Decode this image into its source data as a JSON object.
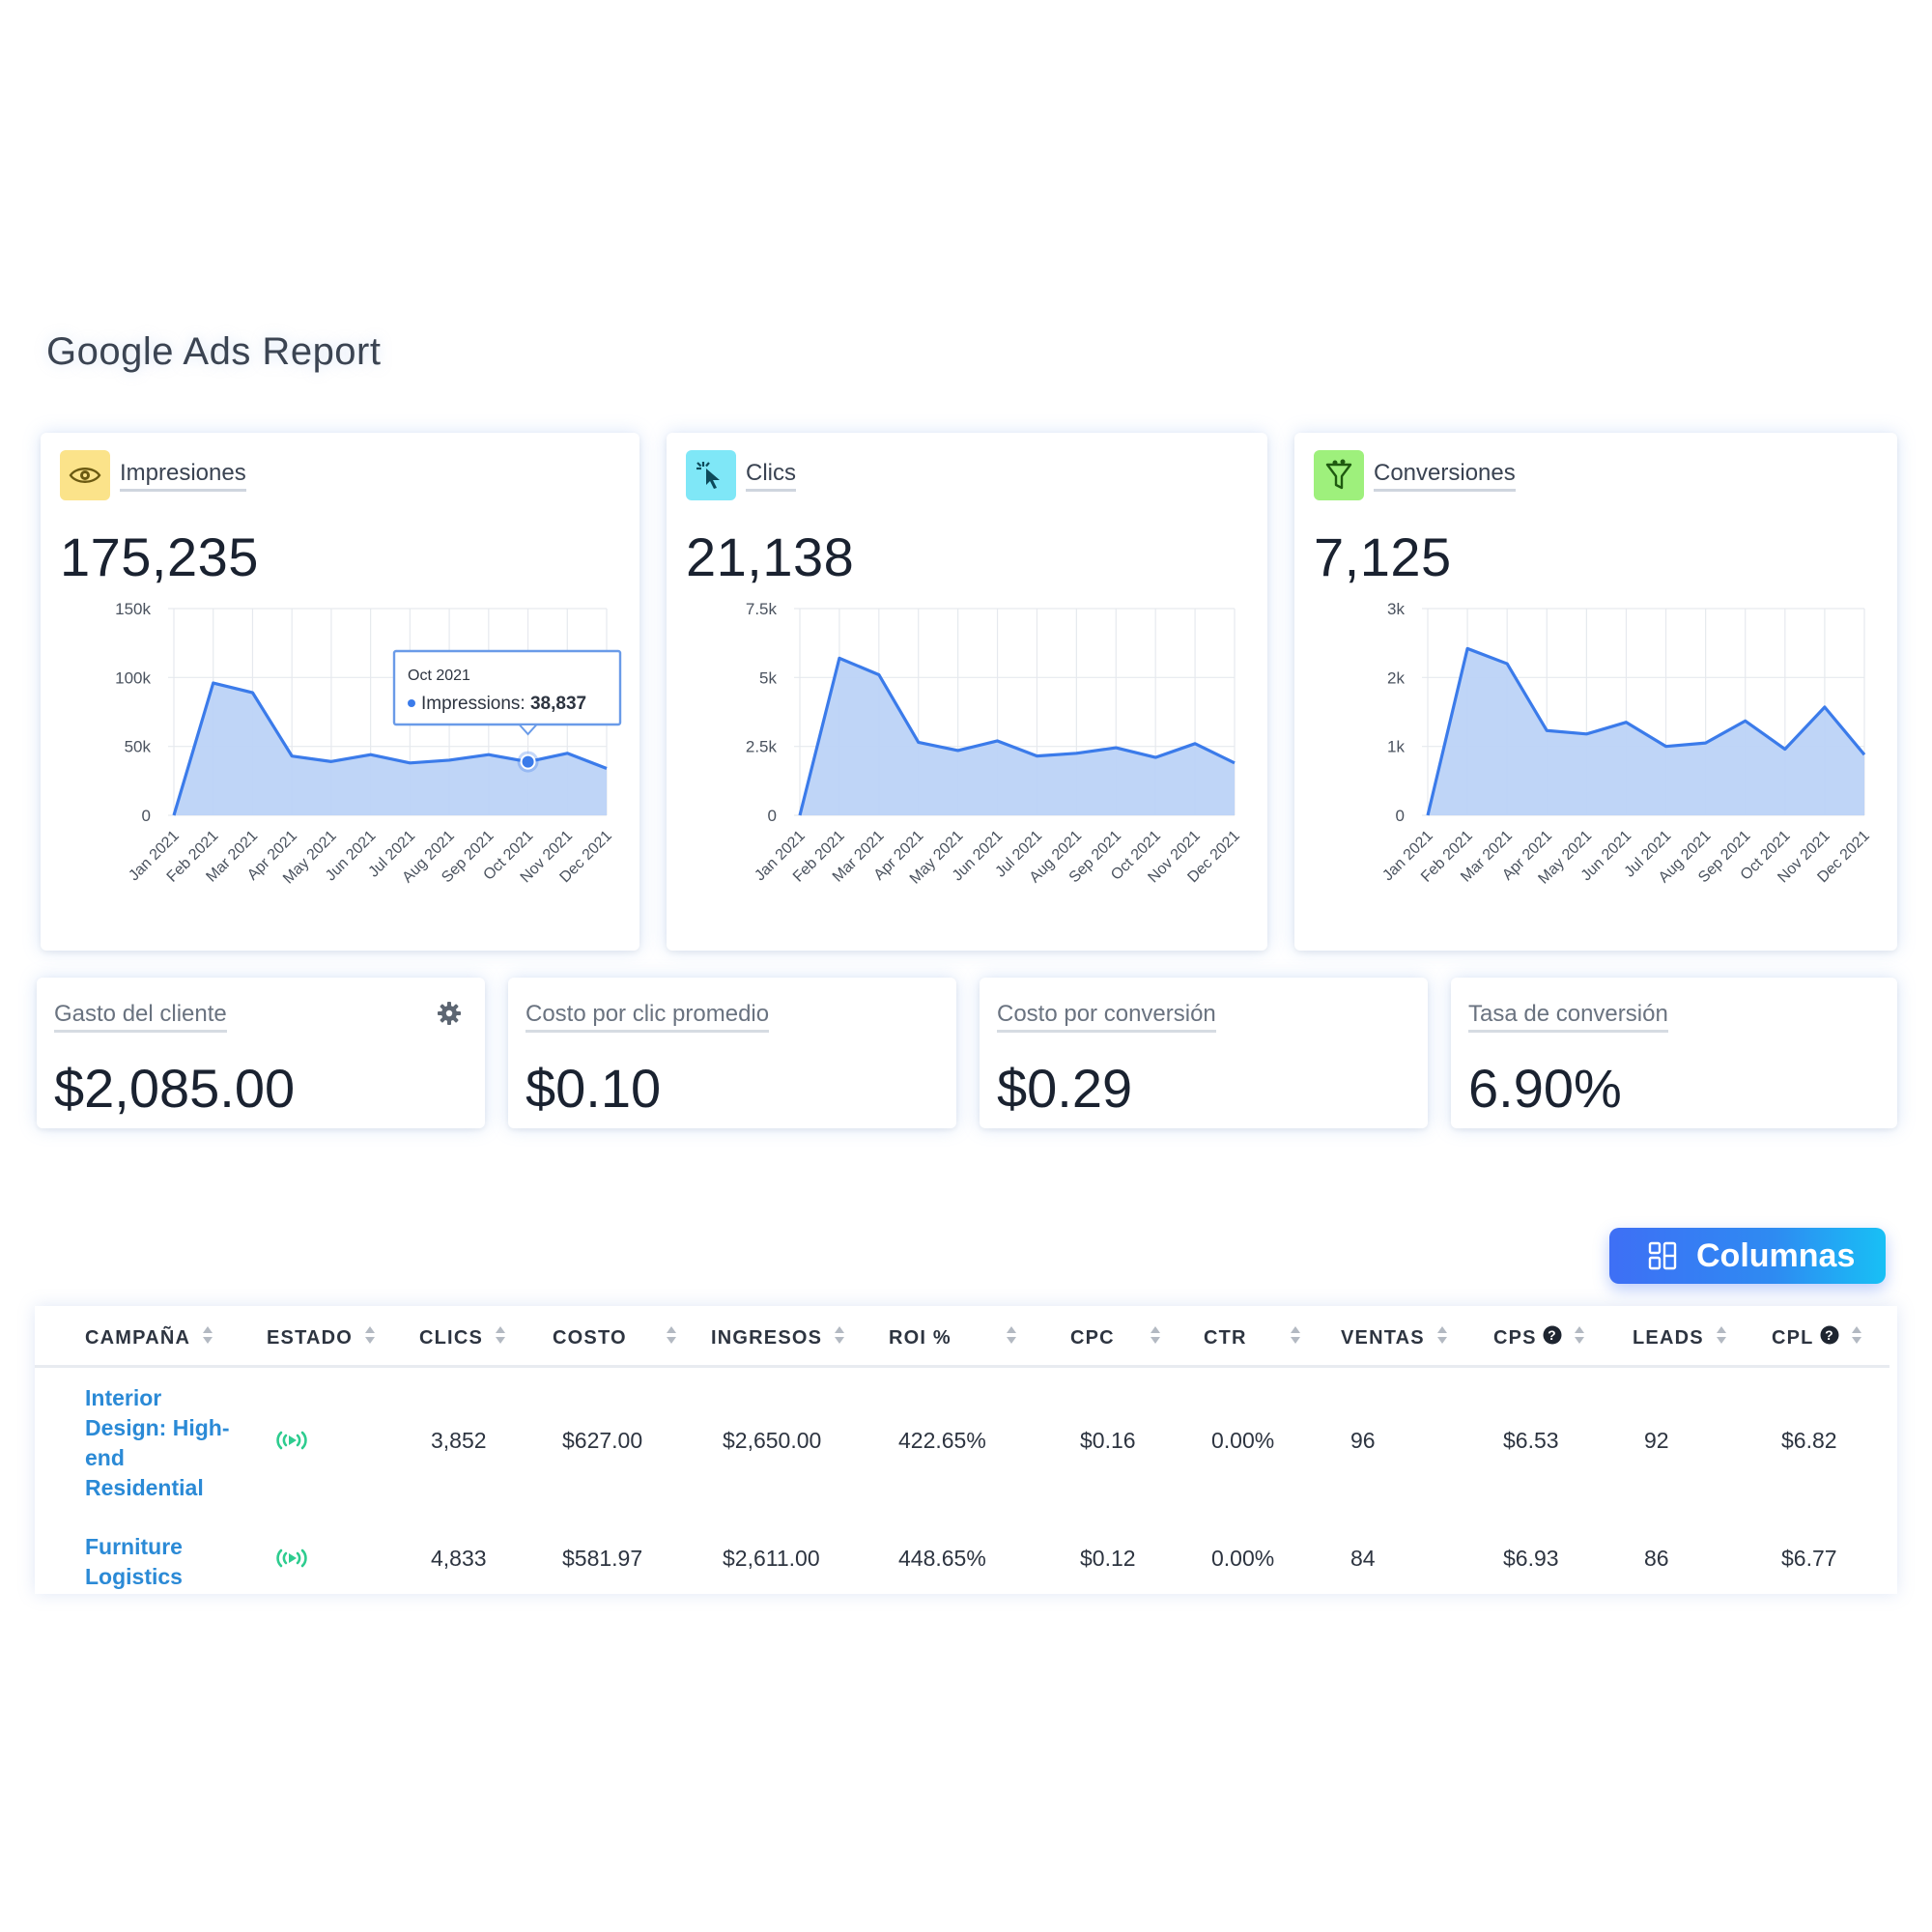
{
  "page": {
    "title": "Google Ads Report"
  },
  "charts": [
    {
      "label": "Impresiones",
      "value": "175,235",
      "icon": "eye-icon",
      "icon_bg": "#fbe38a",
      "tooltip": {
        "month": "Oct 2021",
        "series": "Impressions:",
        "value": "38,837",
        "index": 9
      },
      "y_ticks": [
        "0",
        "50k",
        "100k",
        "150k"
      ]
    },
    {
      "label": "Clics",
      "value": "21,138",
      "icon": "cursor-click-icon",
      "icon_bg": "#7fe7f7",
      "y_ticks": [
        "0",
        "2.5k",
        "5k",
        "7.5k"
      ]
    },
    {
      "label": "Conversiones",
      "value": "7,125",
      "icon": "funnel-icon",
      "icon_bg": "#9ef07c",
      "y_ticks": [
        "0",
        "1k",
        "2k",
        "3k"
      ]
    }
  ],
  "chart_data": [
    {
      "type": "area",
      "x": [
        "Jan 2021",
        "Feb 2021",
        "Mar 2021",
        "Apr 2021",
        "May 2021",
        "Jun 2021",
        "Jul 2021",
        "Aug 2021",
        "Sep 2021",
        "Oct 2021",
        "Nov 2021",
        "Dec 2021"
      ],
      "series": [
        {
          "name": "Impressions",
          "values": [
            0,
            96000,
            89000,
            43000,
            39000,
            44000,
            38000,
            40000,
            44000,
            38837,
            45000,
            34000
          ]
        }
      ],
      "ylim": [
        0,
        150000
      ],
      "yticks": [
        "0",
        "50k",
        "100k",
        "150k"
      ],
      "grid": true,
      "color": "#3b7bea",
      "fill": "#bcd3f7"
    },
    {
      "type": "area",
      "x": [
        "Jan 2021",
        "Feb 2021",
        "Mar 2021",
        "Apr 2021",
        "May 2021",
        "Jun 2021",
        "Jul 2021",
        "Aug 2021",
        "Sep 2021",
        "Oct 2021",
        "Nov 2021",
        "Dec 2021"
      ],
      "values": [
        0,
        5700,
        5100,
        2650,
        2350,
        2700,
        2150,
        2250,
        2450,
        2100,
        2600,
        1900
      ],
      "ylim": [
        0,
        7500
      ],
      "yticks": [
        "0",
        "2.5k",
        "5k",
        "7.5k"
      ],
      "grid": true,
      "color": "#3b7bea",
      "fill": "#bcd3f7"
    },
    {
      "type": "area",
      "x": [
        "Jan 2021",
        "Feb 2021",
        "Mar 2021",
        "Apr 2021",
        "May 2021",
        "Jun 2021",
        "Jul 2021",
        "Aug 2021",
        "Sep 2021",
        "Oct 2021",
        "Nov 2021",
        "Dec 2021"
      ],
      "values": [
        0,
        2420,
        2200,
        1230,
        1180,
        1350,
        1000,
        1050,
        1370,
        960,
        1570,
        880
      ],
      "ylim": [
        0,
        3000
      ],
      "yticks": [
        "0",
        "1k",
        "2k",
        "3k"
      ],
      "grid": true,
      "color": "#3b7bea",
      "fill": "#bcd3f7"
    }
  ],
  "kpis": [
    {
      "label": "Gasto del cliente",
      "value": "$2,085.00",
      "has_settings": true
    },
    {
      "label": "Costo por clic promedio",
      "value": "$0.10"
    },
    {
      "label": "Costo por conversión",
      "value": "$0.29"
    },
    {
      "label": "Tasa de conversión",
      "value": "6.90%"
    }
  ],
  "columns_button": {
    "label": "Columnas"
  },
  "table": {
    "headers": [
      "CAMPAÑA",
      "ESTADO",
      "CLICS",
      "COSTO",
      "INGRESOS",
      "ROI %",
      "CPC",
      "CTR",
      "VENTAS",
      "CPS",
      "LEADS",
      "CPL"
    ],
    "rows": [
      {
        "campaign": "Interior Design: High-end Residential",
        "status": "active",
        "cells": [
          "3,852",
          "$627.00",
          "$2,650.00",
          "422.65%",
          "$0.16",
          "0.00%",
          "96",
          "$6.53",
          "92",
          "$6.82"
        ]
      },
      {
        "campaign": "Furniture Logistics",
        "status": "active",
        "cells": [
          "4,833",
          "$581.97",
          "$2,611.00",
          "448.65%",
          "$0.12",
          "0.00%",
          "84",
          "$6.93",
          "86",
          "$6.77"
        ]
      }
    ]
  },
  "colors": {
    "accent": "#3b7bea",
    "link": "#2b8ad6",
    "status_active": "#2ecc8f"
  }
}
